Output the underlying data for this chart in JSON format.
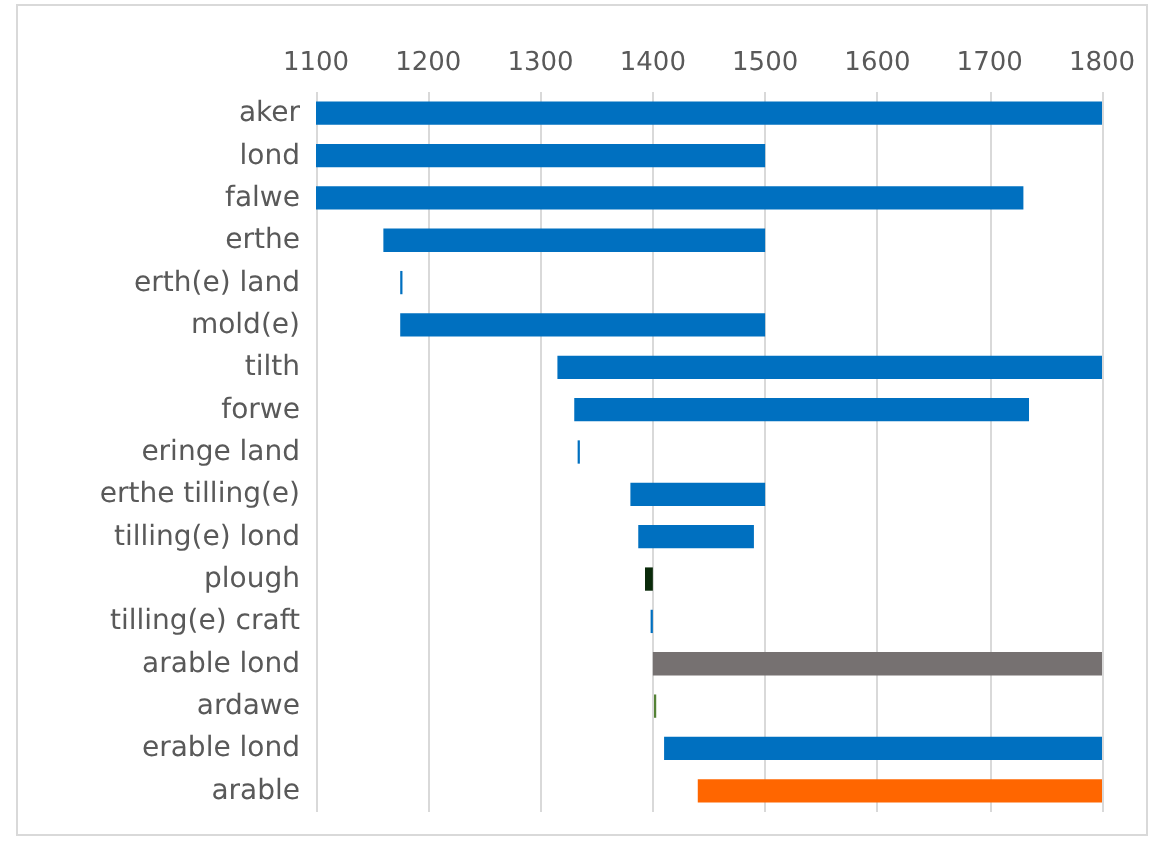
{
  "chart_data": {
    "type": "bar",
    "orientation": "horizontal",
    "categories": [
      "aker",
      "lond",
      "falwe",
      "erthe",
      "erth(e) land",
      "mold(e)",
      "tilth",
      "forwe",
      "eringe land",
      "erthe tilling(e)",
      "tilling(e) lond",
      "plough",
      "tilling(e) craft",
      "arable lond",
      "ardawe",
      "erable lond",
      "arable"
    ],
    "base": [
      1100,
      1100,
      1100,
      1160,
      1175,
      1175,
      1315,
      1330,
      1333,
      1380,
      1387,
      1393,
      1398,
      1400,
      1401,
      1410,
      1440
    ],
    "values": [
      700,
      400,
      630,
      340,
      2,
      325,
      485,
      405,
      2,
      120,
      103,
      7,
      2,
      400,
      2,
      390,
      360
    ],
    "colors": [
      "#0070c0",
      "#0070c0",
      "#0070c0",
      "#0070c0",
      "#0070c0",
      "#0070c0",
      "#0070c0",
      "#0070c0",
      "#0070c0",
      "#0070c0",
      "#0070c0",
      "#0a2a0a",
      "#0070c0",
      "#767171",
      "#548235",
      "#0070c0",
      "#ff6600"
    ],
    "xlim": [
      1100,
      1800
    ],
    "xticks": [
      1100,
      1200,
      1300,
      1400,
      1500,
      1600,
      1700,
      1800
    ],
    "grid": "x"
  }
}
